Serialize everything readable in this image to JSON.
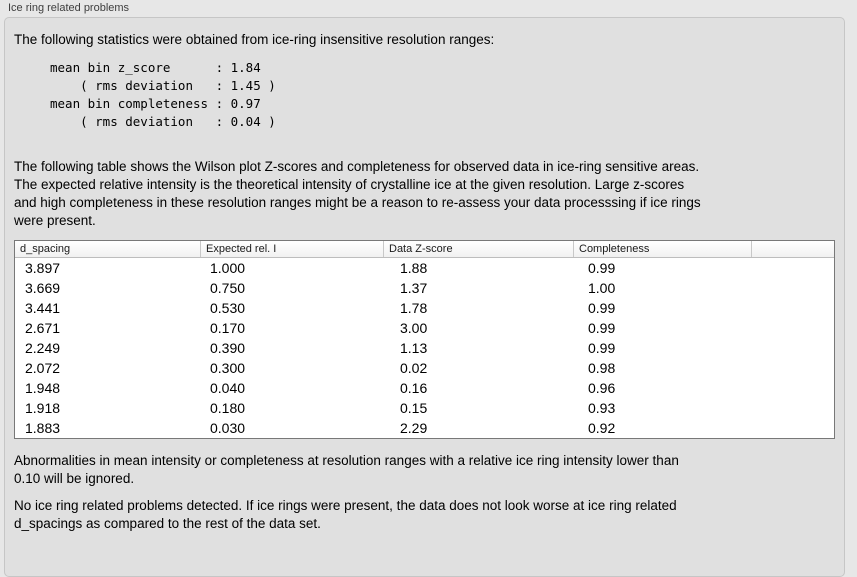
{
  "panel": {
    "label": "Ice ring related problems"
  },
  "intro": "The following statistics were obtained from ice-ring insensitive resolution ranges:",
  "stats_block": [
    "mean bin z_score      : 1.84",
    "    ( rms deviation   : 1.45 )",
    "mean bin completeness : 0.97",
    "    ( rms deviation   : 0.04 )"
  ],
  "stats": {
    "mean_bin_z_score": "1.84",
    "z_score_rms_deviation": "1.45",
    "mean_bin_completeness": "0.97",
    "completeness_rms_deviation": "0.04"
  },
  "table_description": [
    "The following table shows the Wilson plot Z-scores and completeness for observed data in ice-ring sensitive areas.",
    "The expected relative intensity is the theoretical intensity of crystalline ice at the given resolution. Large z-scores",
    "and high completeness in these resolution ranges might be a reason to re-assess your data processsing if ice rings",
    "were present."
  ],
  "table": {
    "headers": [
      "d_spacing",
      "Expected rel. I",
      "Data Z-score",
      "Completeness",
      ""
    ],
    "rows": [
      [
        "3.897",
        "1.000",
        "1.88",
        "0.99"
      ],
      [
        "3.669",
        "0.750",
        "1.37",
        "1.00"
      ],
      [
        "3.441",
        "0.530",
        "1.78",
        "0.99"
      ],
      [
        "2.671",
        "0.170",
        "3.00",
        "0.99"
      ],
      [
        "2.249",
        "0.390",
        "1.13",
        "0.99"
      ],
      [
        "2.072",
        "0.300",
        "0.02",
        "0.98"
      ],
      [
        "1.948",
        "0.040",
        "0.16",
        "0.96"
      ],
      [
        "1.918",
        "0.180",
        "0.15",
        "0.93"
      ],
      [
        "1.883",
        "0.030",
        "2.29",
        "0.92"
      ]
    ]
  },
  "ignore_note": [
    "Abnormalities in mean intensity or completeness at resolution ranges with a relative ice ring intensity lower than",
    "0.10 will be ignored."
  ],
  "conclusion": [
    "No ice ring related problems detected. If ice rings were present, the data does not look worse at ice ring related",
    "d_spacings as compared to the rest of the data set."
  ],
  "colors": {
    "page_background": "#e7e7e7",
    "panel_background": "#e0e0e0",
    "panel_border": "#c6c6c6",
    "table_border": "#787878",
    "header_divider": "#c8c8c8",
    "text": "#000000"
  }
}
